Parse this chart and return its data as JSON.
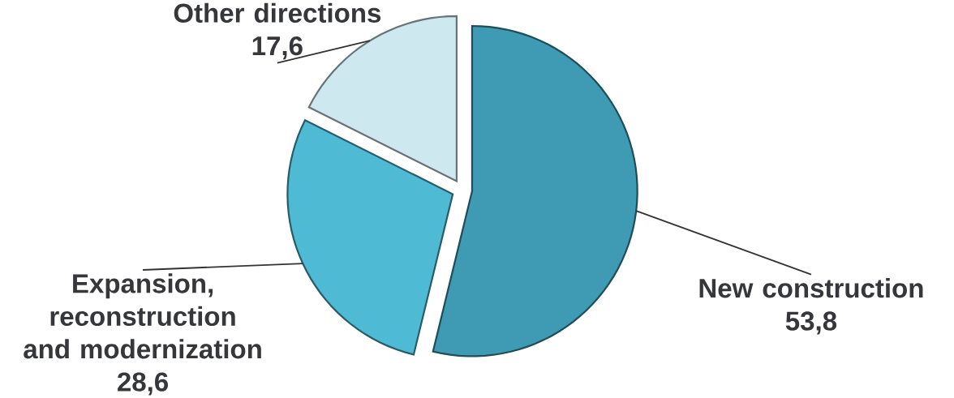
{
  "chart_data": {
    "type": "pie",
    "categories": [
      "New construction",
      "Expansion, reconstruction and modernization",
      "Other directions"
    ],
    "values": [
      53.8,
      28.6,
      17.6
    ],
    "value_labels": [
      "53,8",
      "28,6",
      "17,6"
    ],
    "colors": [
      "#3e9bb3",
      "#4fbad3",
      "#cde9ef"
    ]
  }
}
